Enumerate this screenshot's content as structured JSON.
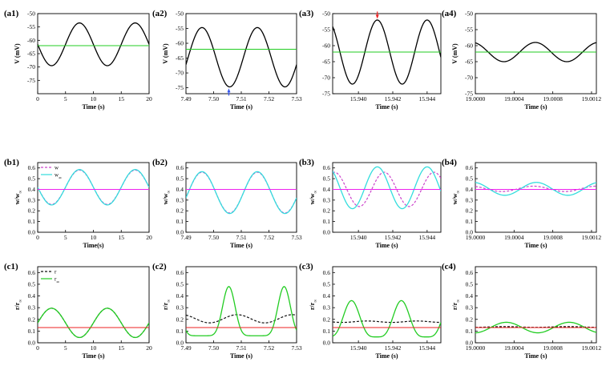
{
  "chart_data": [
    {
      "id": "a1",
      "type": "line",
      "panel_label": "(a1)",
      "xlabel": "Time (s)",
      "ylabel": "V (mV)",
      "xlim": [
        0,
        20
      ],
      "ylim": [
        -80,
        -50
      ],
      "xticks": [
        "0",
        "5",
        "10",
        "15",
        "20"
      ],
      "yticks": [
        "-50",
        "-55",
        "-60",
        "-65",
        "-70",
        "-75"
      ],
      "series": [
        {
          "kind": "sine",
          "color": "#000000",
          "style": "solid",
          "mean": -61.5,
          "amp": 8,
          "period": 10,
          "peak_x": 7.5
        },
        {
          "kind": "hline",
          "color": "#22cc22",
          "style": "solid",
          "value": -62
        }
      ],
      "legend": []
    },
    {
      "id": "a2",
      "type": "line",
      "panel_label": "(a2)",
      "xlabel": "Time (s)",
      "ylabel": "V (mV)",
      "xlim": [
        7.49,
        7.53
      ],
      "ylim": [
        -77,
        -50
      ],
      "xticks": [
        "7.49",
        "7.50",
        "7.51",
        "7.52",
        "7.53"
      ],
      "yticks": [
        "-50",
        "-55",
        "-60",
        "-65",
        "-70",
        "-75"
      ],
      "series": [
        {
          "kind": "sine",
          "color": "#000000",
          "style": "solid",
          "mean": -64.7,
          "amp": 10,
          "period": 0.02,
          "peak_x": 7.4958
        },
        {
          "kind": "hline",
          "color": "#22cc22",
          "style": "solid",
          "value": -62
        }
      ],
      "markers": [
        {
          "x": 7.5055,
          "y": -76.3,
          "color": "#3355ee",
          "dir": "up"
        }
      ],
      "legend": []
    },
    {
      "id": "a3",
      "type": "line",
      "panel_label": "(a3)",
      "xlabel": "Time (s)",
      "ylabel": "",
      "xlim": [
        15.9385,
        15.9448
      ],
      "ylim": [
        -75,
        -50
      ],
      "xticks": [
        "15.940",
        "15.942",
        "15.944"
      ],
      "yticks": [
        "-50",
        "-55",
        "-60",
        "-65",
        "-70",
        "-75"
      ],
      "series": [
        {
          "kind": "sine",
          "color": "#000000",
          "style": "solid",
          "mean": -62,
          "amp": 10,
          "period": 0.0029,
          "peak_x": 15.9411
        },
        {
          "kind": "hline",
          "color": "#22cc22",
          "style": "solid",
          "value": -62
        }
      ],
      "markers": [
        {
          "x": 15.9411,
          "y": -50.6,
          "color": "#ee2222",
          "dir": "down"
        }
      ],
      "legend": []
    },
    {
      "id": "a4",
      "type": "line",
      "panel_label": "(a4)",
      "xlabel": "Time (s)",
      "ylabel": "V (mV)",
      "xlim": [
        19,
        19.00125
      ],
      "ylim": [
        -75,
        -50
      ],
      "xticks": [
        "19.0000",
        "19.0004",
        "19.0008",
        "19.0012"
      ],
      "yticks": [
        "-50",
        "-55",
        "-60",
        "-65",
        "-70",
        "-75"
      ],
      "series": [
        {
          "kind": "sine",
          "color": "#000000",
          "style": "solid",
          "mean": -62,
          "amp": 3,
          "period": 0.00065,
          "peak_x": 19.00062
        },
        {
          "kind": "hline",
          "color": "#22cc22",
          "style": "solid",
          "value": -62
        }
      ],
      "legend": []
    },
    {
      "id": "b1",
      "type": "line",
      "panel_label": "(b1)",
      "xlabel": "Time(s)",
      "ylabel": "w/w∞",
      "xlim": [
        0,
        20
      ],
      "ylim": [
        0,
        0.65
      ],
      "xticks": [
        "0",
        "5",
        "10",
        "15",
        "20"
      ],
      "yticks": [
        "0.0",
        "0.1",
        "0.2",
        "0.3",
        "0.4",
        "0.5",
        "0.6"
      ],
      "series": [
        {
          "kind": "sine",
          "color": "#cc44cc",
          "style": "dashed",
          "mean": 0.42,
          "amp": 0.16,
          "period": 10,
          "peak_x": 7.5
        },
        {
          "kind": "sine",
          "color": "#33dddd",
          "style": "solid",
          "mean": 0.42,
          "amp": 0.165,
          "period": 10,
          "peak_x": 7.5
        },
        {
          "kind": "hline",
          "color": "#ee22ee",
          "style": "solid",
          "value": 0.4
        }
      ],
      "legend": [
        {
          "label": "w",
          "color": "#cc44cc",
          "style": "dashed"
        },
        {
          "label": "w∞",
          "color": "#33dddd",
          "style": "solid"
        }
      ]
    },
    {
      "id": "b2",
      "type": "line",
      "panel_label": "(b2)",
      "xlabel": "Time (s)",
      "ylabel": "w/w∞",
      "xlim": [
        7.49,
        7.53
      ],
      "ylim": [
        0,
        0.65
      ],
      "xticks": [
        "7.49",
        "7.50",
        "7.51",
        "7.52",
        "7.53"
      ],
      "yticks": [
        "0.0",
        "0.1",
        "0.2",
        "0.3",
        "0.4",
        "0.5",
        "0.6"
      ],
      "series": [
        {
          "kind": "sine",
          "color": "#cc44cc",
          "style": "dashed",
          "mean": 0.37,
          "amp": 0.19,
          "period": 0.02,
          "peak_x": 7.4958
        },
        {
          "kind": "sine",
          "color": "#33dddd",
          "style": "solid",
          "mean": 0.37,
          "amp": 0.195,
          "period": 0.02,
          "peak_x": 7.4958
        },
        {
          "kind": "hline",
          "color": "#ee22ee",
          "style": "solid",
          "value": 0.4
        }
      ],
      "legend": []
    },
    {
      "id": "b3",
      "type": "line",
      "panel_label": "(b3)",
      "xlabel": "Time (s)",
      "ylabel": "w/w∞",
      "xlim": [
        15.9385,
        15.9448
      ],
      "ylim": [
        0,
        0.65
      ],
      "xticks": [
        "15.940",
        "15.942",
        "15.944"
      ],
      "yticks": [
        "0.0",
        "0.1",
        "0.2",
        "0.3",
        "0.4",
        "0.5",
        "0.6"
      ],
      "series": [
        {
          "kind": "sine",
          "color": "#cc44cc",
          "style": "dashed",
          "mean": 0.4,
          "amp": 0.16,
          "period": 0.0029,
          "peak_x": 15.9415
        },
        {
          "kind": "sine",
          "color": "#33dddd",
          "style": "solid",
          "mean": 0.415,
          "amp": 0.195,
          "period": 0.0029,
          "peak_x": 15.9411
        },
        {
          "kind": "hline",
          "color": "#ee22ee",
          "style": "solid",
          "value": 0.4
        }
      ],
      "legend": []
    },
    {
      "id": "b4",
      "type": "line",
      "panel_label": "(b4)",
      "xlabel": "Time (s)",
      "ylabel": "w/w∞",
      "xlim": [
        19,
        19.00125
      ],
      "ylim": [
        0,
        0.65
      ],
      "xticks": [
        "19.0000",
        "19.0004",
        "19.0008",
        "19.0012"
      ],
      "yticks": [
        "0.0",
        "0.1",
        "0.2",
        "0.3",
        "0.4",
        "0.5",
        "0.6"
      ],
      "series": [
        {
          "kind": "sine",
          "color": "#cc44cc",
          "style": "dashed",
          "mean": 0.405,
          "amp": 0.025,
          "period": 0.00065,
          "peak_x": 19.0006
        },
        {
          "kind": "sine",
          "color": "#33dddd",
          "style": "solid",
          "mean": 0.405,
          "amp": 0.06,
          "period": 0.00065,
          "peak_x": 19.00063
        },
        {
          "kind": "hline",
          "color": "#ee22ee",
          "style": "solid",
          "value": 0.4
        }
      ],
      "legend": []
    },
    {
      "id": "c1",
      "type": "line",
      "panel_label": "(c1)",
      "xlabel": "Time (s)",
      "ylabel": "r/r∞",
      "xlim": [
        0,
        20
      ],
      "ylim": [
        0,
        0.65
      ],
      "xticks": [
        "0",
        "5",
        "10",
        "15",
        "20"
      ],
      "yticks": [
        "0.0",
        "0.1",
        "0.2",
        "0.3",
        "0.4",
        "0.5",
        "0.6"
      ],
      "series": [
        {
          "kind": "sine",
          "color": "#111111",
          "style": "dashed",
          "mean": 0.17,
          "amp": 0.125,
          "period": 10,
          "peak_x": 2.5
        },
        {
          "kind": "sine",
          "color": "#22cc22",
          "style": "solid",
          "mean": 0.17,
          "amp": 0.125,
          "period": 10,
          "peak_x": 2.5
        },
        {
          "kind": "hline",
          "color": "#ee2222",
          "style": "solid",
          "value": 0.13
        }
      ],
      "legend": [
        {
          "label": "r",
          "color": "#111111",
          "style": "dashed"
        },
        {
          "label": "r∞",
          "color": "#22cc22",
          "style": "solid"
        }
      ]
    },
    {
      "id": "c2",
      "type": "line",
      "panel_label": "(c2)",
      "xlabel": "Time (s)",
      "ylabel": "r/r∞",
      "xlim": [
        7.49,
        7.53
      ],
      "ylim": [
        0,
        0.65
      ],
      "xticks": [
        "7.49",
        "7.50",
        "7.51",
        "7.52",
        "7.53"
      ],
      "yticks": [
        "0.0",
        "0.1",
        "0.2",
        "0.3",
        "0.4",
        "0.5",
        "0.6"
      ],
      "series": [
        {
          "kind": "sine",
          "color": "#111111",
          "style": "dashed",
          "mean": 0.205,
          "amp": 0.035,
          "period": 0.02,
          "peak_x": 7.5085
        },
        {
          "kind": "pulse",
          "color": "#22cc22",
          "style": "solid",
          "base": 0.06,
          "amp": 0.42,
          "period": 0.02,
          "peak_x": 7.5055,
          "sharp": 4
        },
        {
          "kind": "hline",
          "color": "#ee2222",
          "style": "solid",
          "value": 0.13
        }
      ],
      "legend": []
    },
    {
      "id": "c3",
      "type": "line",
      "panel_label": "(c3)",
      "xlabel": "Time (s)",
      "ylabel": "r/r∞",
      "xlim": [
        15.9385,
        15.9448
      ],
      "ylim": [
        0,
        0.65
      ],
      "xticks": [
        "15.940",
        "15.942",
        "15.944"
      ],
      "yticks": [
        "0.0",
        "0.1",
        "0.2",
        "0.3",
        "0.4",
        "0.5",
        "0.6"
      ],
      "series": [
        {
          "kind": "sine",
          "color": "#111111",
          "style": "dashed",
          "mean": 0.18,
          "amp": 0.006,
          "period": 0.0029,
          "peak_x": 15.9405
        },
        {
          "kind": "pulse",
          "color": "#22cc22",
          "style": "solid",
          "base": 0.05,
          "amp": 0.31,
          "period": 0.0029,
          "peak_x": 15.9396,
          "sharp": 2
        },
        {
          "kind": "hline",
          "color": "#ee2222",
          "style": "solid",
          "value": 0.13
        }
      ],
      "legend": []
    },
    {
      "id": "c4",
      "type": "line",
      "panel_label": "(c4)",
      "xlabel": "Time (s)",
      "ylabel": "r/r∞",
      "xlim": [
        19,
        19.00125
      ],
      "ylim": [
        0,
        0.65
      ],
      "xticks": [
        "19.0000",
        "19.0004",
        "19.0008",
        "19.0012"
      ],
      "yticks": [
        "0.0",
        "0.1",
        "0.2",
        "0.3",
        "0.4",
        "0.5",
        "0.6"
      ],
      "series": [
        {
          "kind": "sine",
          "color": "#111111",
          "style": "dashed",
          "mean": 0.135,
          "amp": 0.003,
          "period": 0.00065,
          "peak_x": 19.0003
        },
        {
          "kind": "sine",
          "color": "#22cc22",
          "style": "solid",
          "mean": 0.13,
          "amp": 0.045,
          "period": 0.00065,
          "peak_x": 19.00032
        },
        {
          "kind": "hline",
          "color": "#ee2222",
          "style": "solid",
          "value": 0.13
        }
      ],
      "legend": []
    }
  ]
}
